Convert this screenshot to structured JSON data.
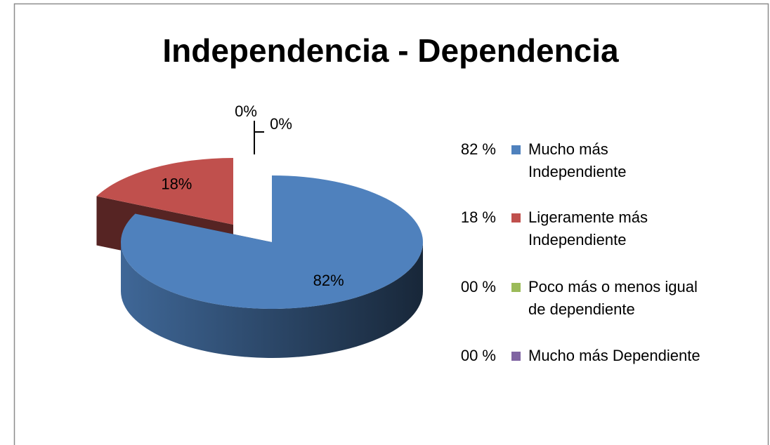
{
  "chart_data": {
    "type": "pie3d",
    "title": "Independencia - Dependencia",
    "categories": [
      "Mucho más Independiente",
      "Ligeramente más Independiente",
      "Poco más o menos igual de dependiente",
      "Mucho más Dependiente"
    ],
    "values": [
      82,
      18,
      0,
      0
    ],
    "value_labels": [
      "82%",
      "18%",
      "0%",
      "0%"
    ],
    "legend_labels": [
      "82 %",
      "18 %",
      "00 %",
      "00 %"
    ],
    "colors": [
      "#4f81bd",
      "#c0504d",
      "#9bbb59",
      "#8064a2"
    ],
    "legend": "right"
  }
}
